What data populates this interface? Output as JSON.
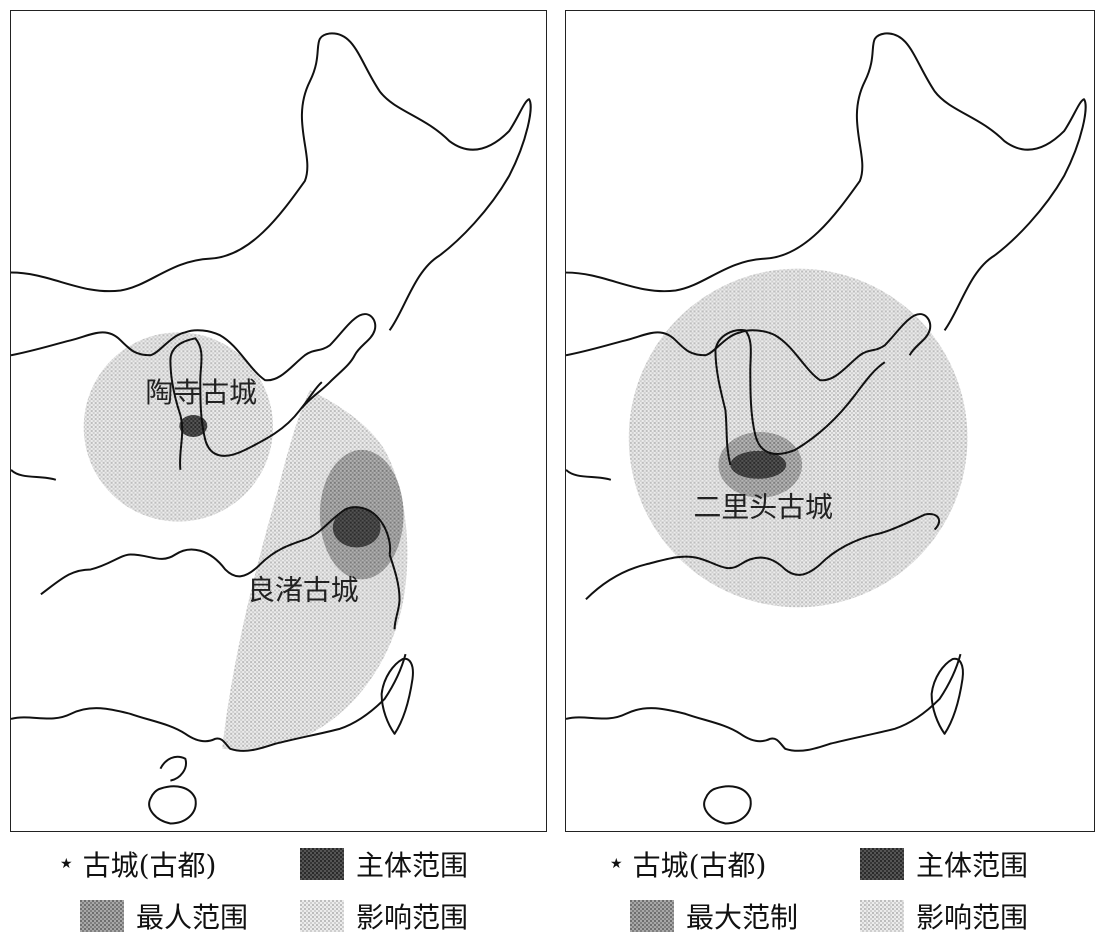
{
  "left_map": {
    "cities": [
      {
        "label": "陶寺古城"
      },
      {
        "label": "良渚古城"
      }
    ],
    "legend": {
      "ancient_city": "古城(古都)",
      "main_range": "主体范围",
      "max_range": "最人范围",
      "influence_range": "影响范围"
    }
  },
  "right_map": {
    "cities": [
      {
        "label": "二里头古城"
      }
    ],
    "legend": {
      "ancient_city": "古城(古都)",
      "main_range": "主体范围",
      "max_range": "最大范制",
      "influence_range": "影响范围"
    }
  },
  "colors": {
    "outline": "#111111",
    "main_range": "#4a4a4a",
    "max_range": "#8c8c8c",
    "influence_range": "#d6d6d6"
  }
}
